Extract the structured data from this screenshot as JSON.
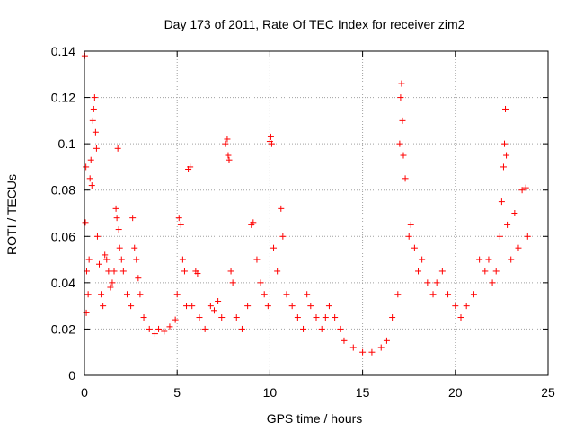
{
  "chart_data": {
    "type": "scatter",
    "title": "Day 173 of 2011, Rate Of TEC Index for receiver zim2",
    "xlabel": "GPS time / hours",
    "ylabel": "ROTI / TECUs",
    "xlim": [
      0,
      25
    ],
    "ylim": [
      0,
      0.14
    ],
    "x_ticks": [
      0,
      5,
      10,
      15,
      20,
      25
    ],
    "x_tick_labels": [
      "0",
      "5",
      "10",
      "15",
      "20",
      "25"
    ],
    "y_ticks": [
      0,
      0.02,
      0.04,
      0.06,
      0.08,
      0.1,
      0.12,
      0.14
    ],
    "y_tick_labels": [
      "0",
      "0.02",
      "0.04",
      "0.06",
      "0.08",
      "0.1",
      "0.12",
      "0.14"
    ],
    "grid": true,
    "marker": "+",
    "series": [
      {
        "name": "ROTI",
        "color": "#ff0000",
        "points": [
          [
            0.02,
            0.138
          ],
          [
            0.05,
            0.066
          ],
          [
            0.08,
            0.09
          ],
          [
            0.1,
            0.027
          ],
          [
            0.12,
            0.045
          ],
          [
            0.2,
            0.035
          ],
          [
            0.25,
            0.05
          ],
          [
            0.3,
            0.085
          ],
          [
            0.35,
            0.093
          ],
          [
            0.4,
            0.082
          ],
          [
            0.45,
            0.11
          ],
          [
            0.5,
            0.115
          ],
          [
            0.55,
            0.12
          ],
          [
            0.6,
            0.105
          ],
          [
            0.65,
            0.098
          ],
          [
            0.7,
            0.06
          ],
          [
            0.8,
            0.048
          ],
          [
            0.9,
            0.035
          ],
          [
            1.0,
            0.03
          ],
          [
            1.1,
            0.052
          ],
          [
            1.2,
            0.05
          ],
          [
            1.3,
            0.045
          ],
          [
            1.4,
            0.038
          ],
          [
            1.5,
            0.04
          ],
          [
            1.6,
            0.045
          ],
          [
            1.7,
            0.072
          ],
          [
            1.75,
            0.068
          ],
          [
            1.8,
            0.098
          ],
          [
            1.85,
            0.063
          ],
          [
            1.9,
            0.055
          ],
          [
            2.0,
            0.05
          ],
          [
            2.1,
            0.045
          ],
          [
            2.3,
            0.035
          ],
          [
            2.5,
            0.03
          ],
          [
            2.6,
            0.068
          ],
          [
            2.7,
            0.055
          ],
          [
            2.8,
            0.05
          ],
          [
            2.9,
            0.042
          ],
          [
            3.0,
            0.035
          ],
          [
            3.2,
            0.025
          ],
          [
            3.5,
            0.02
          ],
          [
            3.8,
            0.018
          ],
          [
            4.0,
            0.02
          ],
          [
            4.3,
            0.019
          ],
          [
            4.6,
            0.021
          ],
          [
            4.9,
            0.024
          ],
          [
            5.0,
            0.035
          ],
          [
            5.1,
            0.068
          ],
          [
            5.2,
            0.065
          ],
          [
            5.3,
            0.05
          ],
          [
            5.4,
            0.045
          ],
          [
            5.5,
            0.03
          ],
          [
            5.6,
            0.089
          ],
          [
            5.7,
            0.09
          ],
          [
            5.8,
            0.03
          ],
          [
            6.0,
            0.045
          ],
          [
            6.1,
            0.044
          ],
          [
            6.2,
            0.025
          ],
          [
            6.5,
            0.02
          ],
          [
            6.8,
            0.03
          ],
          [
            7.0,
            0.028
          ],
          [
            7.2,
            0.032
          ],
          [
            7.4,
            0.025
          ],
          [
            7.6,
            0.1
          ],
          [
            7.7,
            0.102
          ],
          [
            7.75,
            0.095
          ],
          [
            7.8,
            0.093
          ],
          [
            7.9,
            0.045
          ],
          [
            8.0,
            0.04
          ],
          [
            8.2,
            0.025
          ],
          [
            8.5,
            0.02
          ],
          [
            8.8,
            0.03
          ],
          [
            9.0,
            0.065
          ],
          [
            9.1,
            0.066
          ],
          [
            9.3,
            0.05
          ],
          [
            9.5,
            0.04
          ],
          [
            9.7,
            0.035
          ],
          [
            9.9,
            0.03
          ],
          [
            10.0,
            0.101
          ],
          [
            10.05,
            0.103
          ],
          [
            10.1,
            0.1
          ],
          [
            10.2,
            0.055
          ],
          [
            10.4,
            0.045
          ],
          [
            10.6,
            0.072
          ],
          [
            10.7,
            0.06
          ],
          [
            10.9,
            0.035
          ],
          [
            11.2,
            0.03
          ],
          [
            11.5,
            0.025
          ],
          [
            11.8,
            0.02
          ],
          [
            12.0,
            0.035
          ],
          [
            12.2,
            0.03
          ],
          [
            12.5,
            0.025
          ],
          [
            12.8,
            0.02
          ],
          [
            13.0,
            0.025
          ],
          [
            13.2,
            0.03
          ],
          [
            13.5,
            0.025
          ],
          [
            13.8,
            0.02
          ],
          [
            14.0,
            0.015
          ],
          [
            14.5,
            0.012
          ],
          [
            15.0,
            0.01
          ],
          [
            15.5,
            0.01
          ],
          [
            16.0,
            0.012
          ],
          [
            16.3,
            0.015
          ],
          [
            16.6,
            0.025
          ],
          [
            16.9,
            0.035
          ],
          [
            17.0,
            0.1
          ],
          [
            17.05,
            0.12
          ],
          [
            17.1,
            0.126
          ],
          [
            17.15,
            0.11
          ],
          [
            17.2,
            0.095
          ],
          [
            17.3,
            0.085
          ],
          [
            17.5,
            0.06
          ],
          [
            17.6,
            0.065
          ],
          [
            17.8,
            0.055
          ],
          [
            18.0,
            0.045
          ],
          [
            18.2,
            0.05
          ],
          [
            18.5,
            0.04
          ],
          [
            18.8,
            0.035
          ],
          [
            19.0,
            0.04
          ],
          [
            19.3,
            0.045
          ],
          [
            19.6,
            0.035
          ],
          [
            20.0,
            0.03
          ],
          [
            20.3,
            0.025
          ],
          [
            20.6,
            0.03
          ],
          [
            21.0,
            0.035
          ],
          [
            21.3,
            0.05
          ],
          [
            21.6,
            0.045
          ],
          [
            21.8,
            0.05
          ],
          [
            22.0,
            0.04
          ],
          [
            22.2,
            0.045
          ],
          [
            22.4,
            0.06
          ],
          [
            22.5,
            0.075
          ],
          [
            22.6,
            0.09
          ],
          [
            22.65,
            0.1
          ],
          [
            22.7,
            0.115
          ],
          [
            22.75,
            0.095
          ],
          [
            22.8,
            0.065
          ],
          [
            23.0,
            0.05
          ],
          [
            23.2,
            0.07
          ],
          [
            23.4,
            0.055
          ],
          [
            23.6,
            0.08
          ],
          [
            23.8,
            0.081
          ],
          [
            23.9,
            0.06
          ]
        ]
      }
    ]
  }
}
